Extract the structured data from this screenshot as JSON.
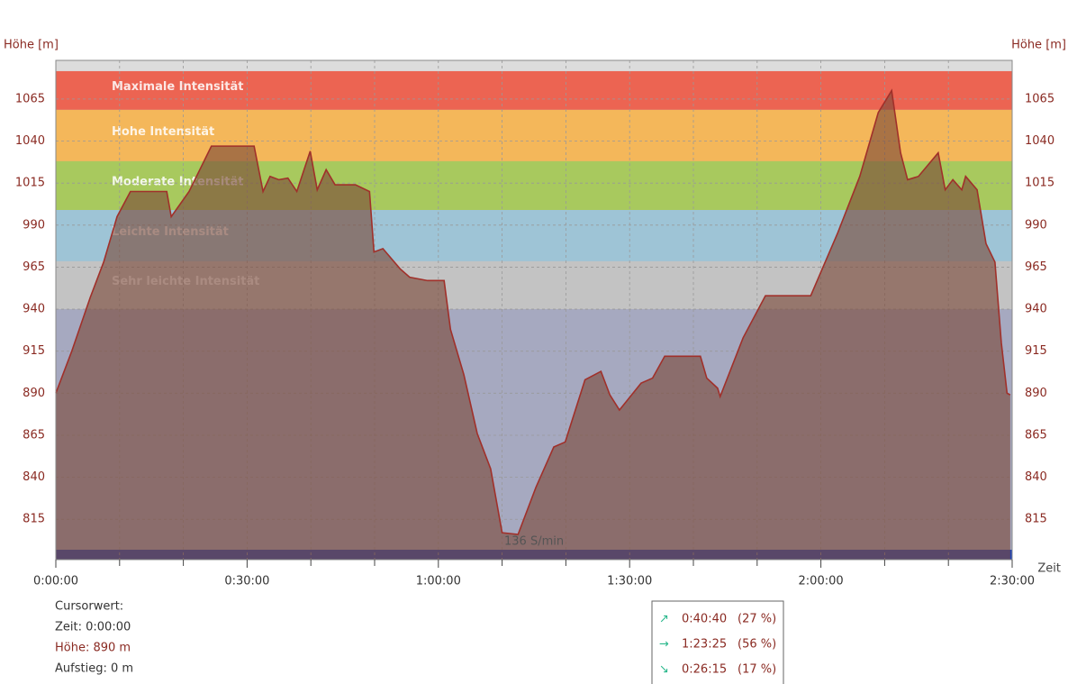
{
  "chart_data": {
    "type": "area",
    "y_label": "Höhe [m]",
    "y2_label": "Höhe [m]",
    "x_label": "Zeit",
    "annotation": "136 S/min",
    "xlim": [
      0,
      150
    ],
    "ylim": [
      791,
      1088
    ],
    "yticks": [
      815,
      840,
      865,
      890,
      915,
      940,
      965,
      990,
      1015,
      1040,
      1065
    ],
    "y2ticks": [
      815,
      840,
      865,
      890,
      915,
      940,
      965,
      990,
      1015,
      1040,
      1065
    ],
    "xticks": [
      {
        "value": 0,
        "label": "0:00:00"
      },
      {
        "value": 30,
        "label": "0:30:00"
      },
      {
        "value": 60,
        "label": "1:00:00"
      },
      {
        "value": 90,
        "label": "1:30:00"
      },
      {
        "value": 120,
        "label": "2:00:00"
      },
      {
        "value": 150,
        "label": "2:30:00"
      }
    ],
    "x_minor_ticks": [
      10,
      20,
      40,
      50,
      70,
      80,
      100,
      110,
      130,
      140
    ],
    "grid": true,
    "bands": [
      {
        "name": "Maximale Intensität",
        "color": "#ec6452",
        "from": 1058.6,
        "to": 1081.6
      },
      {
        "name": "Hohe Intensität",
        "color": "#f4b75a",
        "from": 1028,
        "to": 1058.6
      },
      {
        "name": "Moderate Intensität",
        "color": "#a8c95e",
        "from": 999,
        "to": 1028
      },
      {
        "name": "Leichte Intensität",
        "color": "#9ec4d6",
        "from": 968.5,
        "to": 999
      },
      {
        "name": "Sehr leichte Intensität",
        "color": "#c3c3c3",
        "from": 940,
        "to": 968.5
      }
    ],
    "color": "#a0302a",
    "x": [
      0,
      2.5,
      5.4,
      7.5,
      9.6,
      11.7,
      17.4,
      18.1,
      20.9,
      24.4,
      31.1,
      32.5,
      33.6,
      35,
      36.4,
      37.8,
      39.9,
      41,
      42.4,
      43.8,
      47,
      49.2,
      49.9,
      51.3,
      54,
      55.5,
      58.3,
      60.9,
      61.9,
      64,
      66.1,
      68.2,
      70,
      72.5,
      75.3,
      78.1,
      79.9,
      83,
      85.5,
      86.9,
      88.4,
      91.8,
      93.6,
      95.5,
      101.1,
      102.1,
      103.8,
      104.2,
      107.8,
      111.3,
      118.4,
      122.6,
      126.1,
      129,
      131.1,
      132.5,
      133.6,
      135.3,
      138.4,
      139.5,
      140.7,
      142.1,
      142.7,
      144.5,
      145.9,
      147.3,
      148.3,
      149.2,
      149.7
    ],
    "values": [
      890,
      915,
      947,
      968,
      995,
      1010,
      1010,
      995,
      1010,
      1037,
      1037,
      1010,
      1019,
      1017,
      1018,
      1010,
      1034,
      1011,
      1023,
      1014,
      1014,
      1010,
      974,
      976,
      964,
      959,
      957,
      957,
      928,
      901,
      866,
      845,
      807,
      806,
      834,
      858,
      861,
      898,
      903,
      889,
      880,
      896,
      899,
      912,
      912,
      899,
      893,
      888,
      923,
      948,
      948,
      985,
      1019,
      1057,
      1070,
      1033,
      1017,
      1019,
      1033,
      1011,
      1017,
      1011,
      1019,
      1011,
      979,
      968,
      920,
      890,
      889
    ]
  },
  "cursor": {
    "title": "Cursorwert:",
    "lines": [
      "Zeit: 0:00:00",
      "Höhe:  890 m",
      "Aufstieg: 0 m"
    ]
  },
  "summary": [
    {
      "arrow": "↗",
      "time": "0:40:40",
      "pct": "(27 %)"
    },
    {
      "arrow": "→",
      "time": "1:23:25",
      "pct": "(56 %)"
    },
    {
      "arrow": "↘",
      "time": "0:26:15",
      "pct": "(17 %)"
    }
  ]
}
